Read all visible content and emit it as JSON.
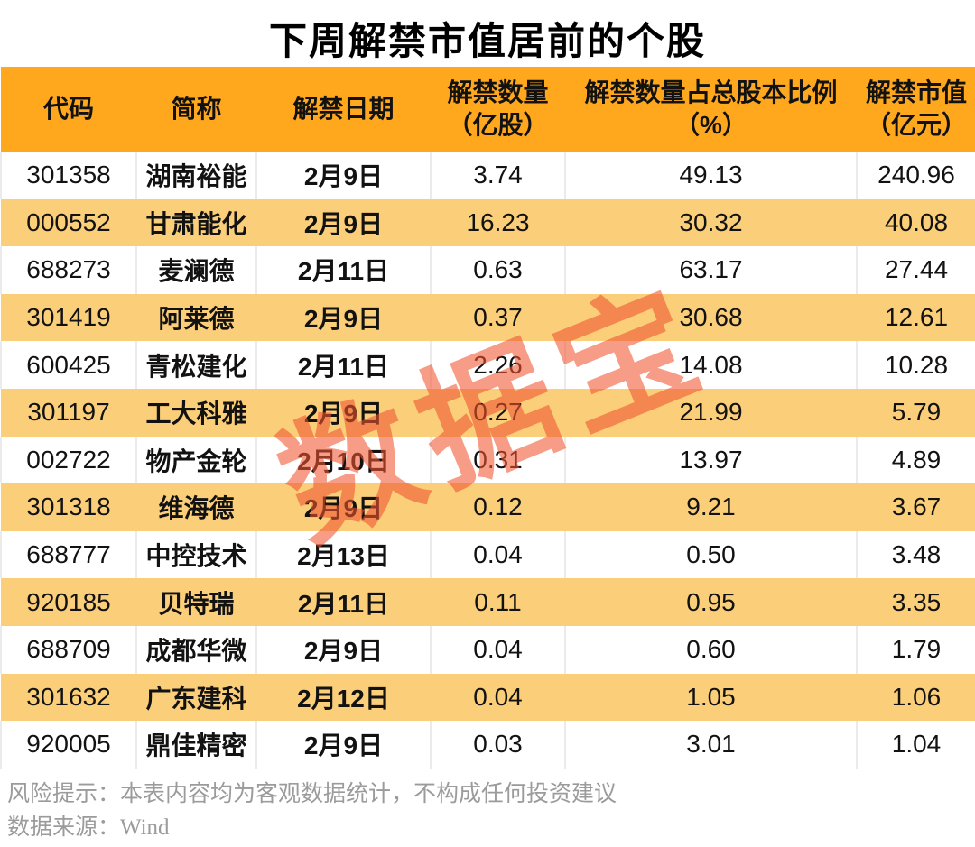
{
  "title": "下周解禁市值居前的个股",
  "watermark": "数据宝",
  "colors": {
    "header_bg": "#FFA81E",
    "alt_row_bg": "#FBCE79",
    "watermark": "#F05530",
    "footer_text": "#9B9B9B",
    "body_text": "#121212"
  },
  "footer": {
    "risk": "风险提示：本表内容均为客观数据统计，不构成任何投资建议",
    "source": "数据来源：Wind"
  },
  "table": {
    "columns": [
      {
        "label": "代码",
        "sub": ""
      },
      {
        "label": "简称",
        "sub": ""
      },
      {
        "label": "解禁日期",
        "sub": ""
      },
      {
        "label": "解禁数量",
        "sub": "（亿股）"
      },
      {
        "label": "解禁数量占总股本比例",
        "sub": "（%）"
      },
      {
        "label": "解禁市值",
        "sub": "（亿元）"
      }
    ],
    "rows": [
      {
        "code": "301358",
        "name": "湖南裕能",
        "date": "2月9日",
        "qty": "3.74",
        "pct": "49.13",
        "mv": "240.96"
      },
      {
        "code": "000552",
        "name": "甘肃能化",
        "date": "2月9日",
        "qty": "16.23",
        "pct": "30.32",
        "mv": "40.08"
      },
      {
        "code": "688273",
        "name": "麦澜德",
        "date": "2月11日",
        "qty": "0.63",
        "pct": "63.17",
        "mv": "27.44"
      },
      {
        "code": "301419",
        "name": "阿莱德",
        "date": "2月9日",
        "qty": "0.37",
        "pct": "30.68",
        "mv": "12.61"
      },
      {
        "code": "600425",
        "name": "青松建化",
        "date": "2月11日",
        "qty": "2.26",
        "pct": "14.08",
        "mv": "10.28"
      },
      {
        "code": "301197",
        "name": "工大科雅",
        "date": "2月9日",
        "qty": "0.27",
        "pct": "21.99",
        "mv": "5.79"
      },
      {
        "code": "002722",
        "name": "物产金轮",
        "date": "2月10日",
        "qty": "0.31",
        "pct": "13.97",
        "mv": "4.89"
      },
      {
        "code": "301318",
        "name": "维海德",
        "date": "2月9日",
        "qty": "0.12",
        "pct": "9.21",
        "mv": "3.67"
      },
      {
        "code": "688777",
        "name": "中控技术",
        "date": "2月13日",
        "qty": "0.04",
        "pct": "0.50",
        "mv": "3.48"
      },
      {
        "code": "920185",
        "name": "贝特瑞",
        "date": "2月11日",
        "qty": "0.11",
        "pct": "0.95",
        "mv": "3.35"
      },
      {
        "code": "688709",
        "name": "成都华微",
        "date": "2月9日",
        "qty": "0.04",
        "pct": "0.60",
        "mv": "1.79"
      },
      {
        "code": "301632",
        "name": "广东建科",
        "date": "2月12日",
        "qty": "0.04",
        "pct": "1.05",
        "mv": "1.06"
      },
      {
        "code": "920005",
        "name": "鼎佳精密",
        "date": "2月9日",
        "qty": "0.03",
        "pct": "3.01",
        "mv": "1.04"
      }
    ]
  },
  "chart_data": {
    "type": "table",
    "title": "下周解禁市值居前的个股",
    "columns": [
      "代码",
      "简称",
      "解禁日期",
      "解禁数量（亿股）",
      "解禁数量占总股本比例（%）",
      "解禁市值（亿元）"
    ],
    "rows": [
      [
        "301358",
        "湖南裕能",
        "2月9日",
        3.74,
        49.13,
        240.96
      ],
      [
        "000552",
        "甘肃能化",
        "2月9日",
        16.23,
        30.32,
        40.08
      ],
      [
        "688273",
        "麦澜德",
        "2月11日",
        0.63,
        63.17,
        27.44
      ],
      [
        "301419",
        "阿莱德",
        "2月9日",
        0.37,
        30.68,
        12.61
      ],
      [
        "600425",
        "青松建化",
        "2月11日",
        2.26,
        14.08,
        10.28
      ],
      [
        "301197",
        "工大科雅",
        "2月9日",
        0.27,
        21.99,
        5.79
      ],
      [
        "002722",
        "物产金轮",
        "2月10日",
        0.31,
        13.97,
        4.89
      ],
      [
        "301318",
        "维海德",
        "2月9日",
        0.12,
        9.21,
        3.67
      ],
      [
        "688777",
        "中控技术",
        "2月13日",
        0.04,
        0.5,
        3.48
      ],
      [
        "920185",
        "贝特瑞",
        "2月11日",
        0.11,
        0.95,
        3.35
      ],
      [
        "688709",
        "成都华微",
        "2月9日",
        0.04,
        0.6,
        1.79
      ],
      [
        "301632",
        "广东建科",
        "2月12日",
        0.04,
        1.05,
        1.06
      ],
      [
        "920005",
        "鼎佳精密",
        "2月9日",
        0.03,
        3.01,
        1.04
      ]
    ],
    "notes": [
      "风险提示：本表内容均为客观数据统计，不构成任何投资建议",
      "数据来源：Wind"
    ]
  }
}
